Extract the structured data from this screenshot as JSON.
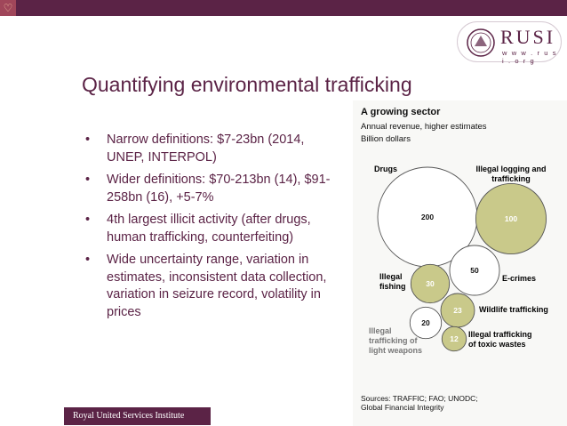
{
  "corner_icon": "heart-icon",
  "logo": {
    "name": "RUSI",
    "url": "w w w . r u s i . o r g"
  },
  "slide": {
    "title": "Quantifying environmental trafficking",
    "bullets": [
      "Narrow definitions: $7-23bn (2014, UNEP, INTERPOL)",
      "Wider definitions: $70-213bn (14),  $91-258bn (16), +5-7%",
      "4th largest illicit activity (after drugs, human trafficking, counterfeiting)",
      "Wide uncertainty range, variation in estimates, inconsistent data collection, variation in seizure record, volatility in prices"
    ],
    "footer": "Royal United Services Institute"
  },
  "chart_data": {
    "type": "bubble",
    "title": "A growing sector",
    "subtitle_lines": [
      "Annual revenue, higher estimates",
      "Billion dollars"
    ],
    "series": [
      {
        "name": "Drugs",
        "value": 200,
        "label_lines": [
          "Drugs"
        ],
        "filled": false,
        "value_color": "#111111"
      },
      {
        "name": "Illegal logging and trafficking",
        "value": 100,
        "label_lines": [
          "Illegal logging and",
          "trafficking"
        ],
        "filled": true,
        "value_color": "#ffffff"
      },
      {
        "name": "E-crimes",
        "value": 50,
        "label_lines": [
          "E-crimes"
        ],
        "filled": false,
        "value_color": "#111111"
      },
      {
        "name": "Illegal fishing",
        "value": 30,
        "label_lines": [
          "Illegal",
          "fishing"
        ],
        "filled": true,
        "value_color": "#ffffff"
      },
      {
        "name": "Wildlife trafficking",
        "value": 23,
        "label_lines": [
          "Wildlife trafficking"
        ],
        "filled": true,
        "value_color": "#ffffff"
      },
      {
        "name": "Illegal trafficking of light weapons",
        "value": 20,
        "label_lines": [
          "Illegal",
          "trafficking of",
          "light weapons"
        ],
        "filled": false,
        "value_color": "#111111"
      },
      {
        "name": "Illegal trafficking of toxic wastes",
        "value": 12,
        "label_lines": [
          "Illegal trafficking",
          "of toxic wastes"
        ],
        "filled": true,
        "value_color": "#ffffff"
      }
    ],
    "fill_color": "#c9c98a",
    "outline_color": "#555555",
    "source_lines": [
      "Sources: TRAFFIC; FAO; UNODC;",
      "Global Financial Integrity"
    ]
  }
}
